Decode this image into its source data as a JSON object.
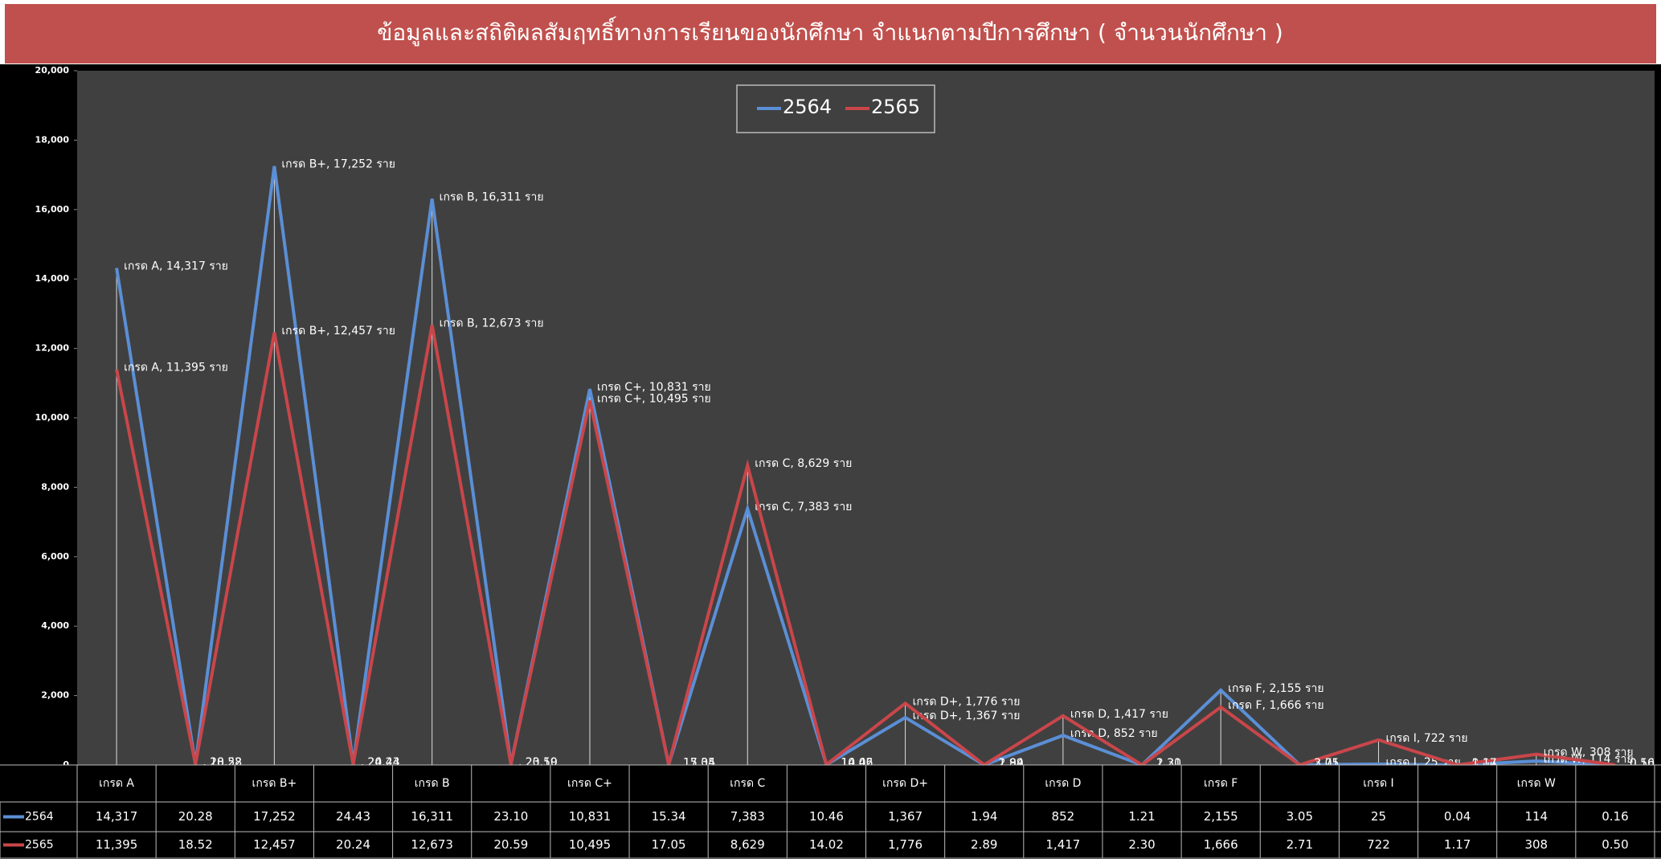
{
  "chart_data": {
    "type": "line",
    "title": "ข้อมูลและสถิติผลสัมฤทธิ์ทางการเรียนของนักศึกษา  จำแนกตามปีการศึกษา (  จำนวนนักศึกษา )",
    "categories": [
      "เกรด A",
      null,
      "เกรด B+",
      null,
      "เกรด B",
      null,
      "เกรด C+",
      null,
      "เกรด C",
      null,
      "เกรด D+",
      null,
      "เกรด D",
      null,
      "เกรด F",
      null,
      "เกรด I",
      null,
      "เกรด W",
      null
    ],
    "series": [
      {
        "name": "2564",
        "color": "#5b8fd6",
        "values": [
          14317,
          20.28,
          17252,
          24.43,
          16311,
          23.1,
          10831,
          15.34,
          7383,
          10.46,
          1367,
          1.94,
          852,
          1.21,
          2155,
          3.05,
          25,
          0.04,
          114,
          0.16
        ],
        "value_labels": [
          "14,317",
          "20.28",
          "17,252",
          "24.43",
          "16,311",
          "23.10",
          "10,831",
          "15.34",
          "7,383",
          "10.46",
          "1,367",
          "1.94",
          "852",
          "1.21",
          "2,155",
          "3.05",
          "25",
          "0.04",
          "114",
          "0.16"
        ],
        "data_labels": [
          "เกรด A, 14,317 ราย",
          ", 20.28",
          "เกรด B+, 17,252 ราย",
          ", 24.43",
          "เกรด B, 16,311 ราย",
          ", 23.10",
          "เกรด C+, 10,831 ราย",
          ", 15.34",
          "เกรด C, 7,383 ราย",
          ", 10.46",
          "เกรด D+, 1,367 ราย",
          ", 1.94",
          "เกรด D, 852 ราย",
          ", 1.21",
          "เกรด F, 2,155 ราย",
          ", 3.05",
          "เกรด I, 25 ราย",
          ", 0.04",
          "เกรด W, 114 ราย",
          ", 0.16"
        ]
      },
      {
        "name": "2565",
        "color": "#c9464a",
        "values": [
          11395,
          18.52,
          12457,
          20.24,
          12673,
          20.59,
          10495,
          17.05,
          8629,
          14.02,
          1776,
          2.89,
          1417,
          2.3,
          1666,
          2.71,
          722,
          1.17,
          308,
          0.5
        ],
        "value_labels": [
          "11,395",
          "18.52",
          "12,457",
          "20.24",
          "12,673",
          "20.59",
          "10,495",
          "17.05",
          "8,629",
          "14.02",
          "1,776",
          "2.89",
          "1,417",
          "2.30",
          "1,666",
          "2.71",
          "722",
          "1.17",
          "308",
          "0.50"
        ],
        "data_labels": [
          "เกรด A, 11,395 ราย",
          ", 18.52",
          "เกรด B+, 12,457 ราย",
          ", 20.24",
          "เกรด B, 12,673 ราย",
          ", 20.59",
          "เกรด C+, 10,495 ราย",
          ", 17.05",
          "เกรด C, 8,629 ราย",
          ", 14.02",
          "เกรด D+, 1,776 ราย",
          ", 2.89",
          "เกรด D, 1,417 ราย",
          ", 2.30",
          "เกรด F, 1,666 ราย",
          ", 2.71",
          "เกรด I, 722 ราย",
          ", 1.17",
          "เกรด W, 308 ราย",
          ", 0.50"
        ]
      }
    ],
    "ylim": [
      0,
      20000
    ],
    "yticks": [
      0,
      {
        "value": 2000,
        "label": "2,000"
      },
      {
        "value": 4000,
        "label": "4,000"
      },
      {
        "value": 6000,
        "label": "6,000"
      },
      {
        "value": 8000,
        "label": "8,000"
      },
      {
        "value": 10000,
        "label": "10,000"
      },
      {
        "value": 12000,
        "label": "12,000"
      },
      {
        "value": 14000,
        "label": "14,000"
      },
      {
        "value": 16000,
        "label": "16,000"
      },
      {
        "value": 18000,
        "label": "18,000"
      },
      {
        "value": 20000,
        "label": "20,000"
      }
    ],
    "legend": "top",
    "grid": false
  }
}
